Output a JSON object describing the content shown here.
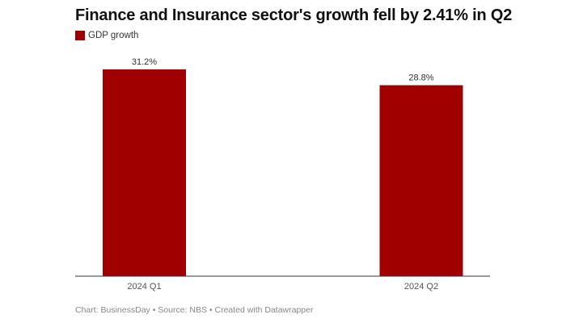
{
  "chart_data": {
    "type": "bar",
    "title": "Finance and Insurance sector's growth fell by 2.41% in Q2",
    "categories": [
      "2024 Q1",
      "2024 Q2"
    ],
    "series": [
      {
        "name": "GDP growth",
        "values": [
          31.2,
          28.8
        ],
        "labels": [
          "31.2%",
          "28.8%"
        ],
        "color": "#a10000"
      }
    ],
    "ylim": [
      0,
      38
    ],
    "grid": false,
    "legend": "top-left",
    "footer": "Chart: BusinessDay • Source: NBS • Created with Datawrapper"
  }
}
